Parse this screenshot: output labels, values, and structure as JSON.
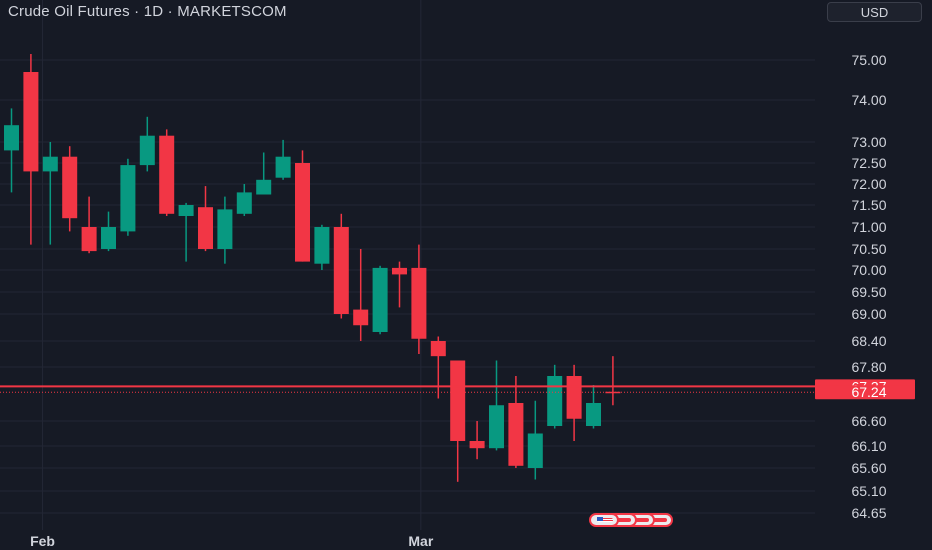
{
  "header": {
    "title": "Crude Oil Futures · 1D · MARKETSCOM",
    "currency": "USD"
  },
  "colors": {
    "background": "#161a25",
    "up": "#089981",
    "down": "#f23645",
    "grid": "#232735",
    "axis_text": "#d1d4dc",
    "price_line": "#f23645"
  },
  "chart_data": {
    "type": "candlestick",
    "title": "Crude Oil Futures · 1D · MARKETSCOM",
    "ylim": [
      64.45,
      75.6
    ],
    "y_ticks": [
      75.0,
      74.0,
      73.0,
      72.5,
      72.0,
      71.5,
      71.0,
      70.5,
      70.0,
      69.5,
      69.0,
      68.4,
      67.8,
      66.6,
      66.1,
      65.6,
      65.1,
      64.65
    ],
    "y_tick_labels": [
      "75.00",
      "74.00",
      "73.00",
      "72.50",
      "72.00",
      "71.50",
      "71.00",
      "70.50",
      "70.00",
      "69.50",
      "69.00",
      "68.40",
      "67.80",
      "66.60",
      "66.10",
      "65.60",
      "65.10",
      "64.65"
    ],
    "x_labels": [
      {
        "label": "Feb",
        "index": 1.6
      },
      {
        "label": "Mar",
        "index": 21.1
      }
    ],
    "price_labels": [
      {
        "value": 67.37,
        "text": "67.37",
        "color": "#f23645",
        "line": "solid"
      },
      {
        "value": 67.24,
        "text": "67.24",
        "color": "#f23645",
        "line": "dotted"
      }
    ],
    "grid": true,
    "candles": [
      {
        "o": 72.8,
        "h": 73.8,
        "l": 71.8,
        "c": 73.4
      },
      {
        "o": 74.7,
        "h": 75.15,
        "l": 70.6,
        "c": 72.3
      },
      {
        "o": 72.3,
        "h": 73.0,
        "l": 70.6,
        "c": 72.65
      },
      {
        "o": 72.65,
        "h": 72.9,
        "l": 70.9,
        "c": 71.2
      },
      {
        "o": 71.0,
        "h": 71.7,
        "l": 70.4,
        "c": 70.45
      },
      {
        "o": 70.5,
        "h": 71.35,
        "l": 70.45,
        "c": 71.0
      },
      {
        "o": 70.9,
        "h": 72.6,
        "l": 70.8,
        "c": 72.45
      },
      {
        "o": 72.45,
        "h": 73.6,
        "l": 72.3,
        "c": 73.15
      },
      {
        "o": 73.15,
        "h": 73.3,
        "l": 71.25,
        "c": 71.3
      },
      {
        "o": 71.25,
        "h": 71.55,
        "l": 70.2,
        "c": 71.5
      },
      {
        "o": 71.45,
        "h": 71.95,
        "l": 70.45,
        "c": 70.5
      },
      {
        "o": 70.5,
        "h": 71.7,
        "l": 70.15,
        "c": 71.4
      },
      {
        "o": 71.3,
        "h": 72.0,
        "l": 71.25,
        "c": 71.8
      },
      {
        "o": 71.75,
        "h": 72.75,
        "l": 71.75,
        "c": 72.1
      },
      {
        "o": 72.15,
        "h": 73.05,
        "l": 72.1,
        "c": 72.65
      },
      {
        "o": 72.5,
        "h": 72.8,
        "l": 70.2,
        "c": 70.2
      },
      {
        "o": 70.15,
        "h": 71.05,
        "l": 70.0,
        "c": 71.0
      },
      {
        "o": 71.0,
        "h": 71.3,
        "l": 68.9,
        "c": 69.0
      },
      {
        "o": 69.1,
        "h": 70.5,
        "l": 68.4,
        "c": 68.75
      },
      {
        "o": 68.6,
        "h": 70.1,
        "l": 68.55,
        "c": 70.05
      },
      {
        "o": 70.05,
        "h": 70.2,
        "l": 69.15,
        "c": 69.9
      },
      {
        "o": 70.05,
        "h": 70.6,
        "l": 68.1,
        "c": 68.45
      },
      {
        "o": 68.4,
        "h": 68.5,
        "l": 67.1,
        "c": 68.05
      },
      {
        "o": 67.95,
        "h": 67.95,
        "l": 65.3,
        "c": 66.2
      },
      {
        "o": 66.2,
        "h": 66.6,
        "l": 65.8,
        "c": 66.05
      },
      {
        "o": 66.05,
        "h": 67.95,
        "l": 66.0,
        "c": 66.95
      },
      {
        "o": 67.0,
        "h": 67.6,
        "l": 65.6,
        "c": 65.65
      },
      {
        "o": 65.6,
        "h": 67.05,
        "l": 65.35,
        "c": 66.35
      },
      {
        "o": 66.5,
        "h": 67.85,
        "l": 66.45,
        "c": 67.6
      },
      {
        "o": 67.6,
        "h": 67.85,
        "l": 66.2,
        "c": 66.65
      },
      {
        "o": 66.5,
        "h": 67.4,
        "l": 66.45,
        "c": 67.0
      },
      {
        "o": 67.25,
        "h": 68.05,
        "l": 66.95,
        "c": 67.24
      }
    ]
  }
}
